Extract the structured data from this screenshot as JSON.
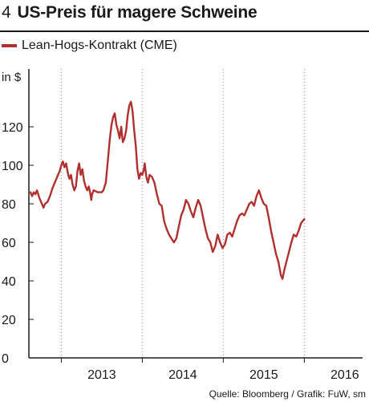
{
  "header": {
    "figure_number": "4",
    "title": "US-Preis für magere Schweine"
  },
  "source": "Quelle: Bloomberg / Grafik: FuW, sm",
  "colors": {
    "series": "#b0302e",
    "axis": "#1a1a1a",
    "grid": "#888888"
  },
  "chart_data": {
    "type": "line",
    "title": "US-Preis für magere Schweine",
    "ylabel": "in $",
    "xlabel": "",
    "ylim": [
      0,
      140
    ],
    "yticks": [
      0,
      20,
      40,
      60,
      80,
      100,
      120
    ],
    "xlim": [
      2012.6,
      2016.66
    ],
    "x_tick_labels": [
      {
        "label": "2013",
        "x": 2013.5
      },
      {
        "label": "2014",
        "x": 2014.5
      },
      {
        "label": "2015",
        "x": 2015.5
      },
      {
        "label": "2016",
        "x": 2016.5
      }
    ],
    "year_boundaries": [
      2013.0,
      2014.0,
      2015.0,
      2016.0
    ],
    "grid": "vertical dotted at year boundaries",
    "legend_position": "top-left",
    "series": [
      {
        "name": "Lean-Hogs-Kontrakt (CME)",
        "color": "#b0302e",
        "points": [
          [
            2012.62,
            86
          ],
          [
            2012.64,
            84
          ],
          [
            2012.66,
            86
          ],
          [
            2012.68,
            85
          ],
          [
            2012.7,
            87
          ],
          [
            2012.73,
            83
          ],
          [
            2012.76,
            80
          ],
          [
            2012.78,
            78
          ],
          [
            2012.8,
            80
          ],
          [
            2012.83,
            81
          ],
          [
            2012.86,
            84
          ],
          [
            2012.89,
            88
          ],
          [
            2012.92,
            91
          ],
          [
            2012.95,
            94
          ],
          [
            2012.98,
            97
          ],
          [
            2013.0,
            100
          ],
          [
            2013.02,
            102
          ],
          [
            2013.04,
            99
          ],
          [
            2013.06,
            101
          ],
          [
            2013.08,
            96
          ],
          [
            2013.1,
            93
          ],
          [
            2013.12,
            95
          ],
          [
            2013.14,
            90
          ],
          [
            2013.16,
            87
          ],
          [
            2013.18,
            89
          ],
          [
            2013.2,
            97
          ],
          [
            2013.22,
            101
          ],
          [
            2013.24,
            95
          ],
          [
            2013.26,
            98
          ],
          [
            2013.28,
            92
          ],
          [
            2013.3,
            89
          ],
          [
            2013.32,
            87
          ],
          [
            2013.34,
            89
          ],
          [
            2013.36,
            85
          ],
          [
            2013.37,
            82
          ],
          [
            2013.38,
            85
          ],
          [
            2013.4,
            87
          ],
          [
            2013.45,
            86
          ],
          [
            2013.5,
            86
          ],
          [
            2013.52,
            87
          ],
          [
            2013.55,
            91
          ],
          [
            2013.58,
            105
          ],
          [
            2013.6,
            114
          ],
          [
            2013.62,
            121
          ],
          [
            2013.64,
            125
          ],
          [
            2013.66,
            127
          ],
          [
            2013.68,
            121
          ],
          [
            2013.7,
            118
          ],
          [
            2013.72,
            114
          ],
          [
            2013.74,
            120
          ],
          [
            2013.76,
            112
          ],
          [
            2013.78,
            114
          ],
          [
            2013.8,
            118
          ],
          [
            2013.82,
            126
          ],
          [
            2013.84,
            131
          ],
          [
            2013.86,
            133
          ],
          [
            2013.88,
            128
          ],
          [
            2013.9,
            118
          ],
          [
            2013.92,
            110
          ],
          [
            2013.94,
            98
          ],
          [
            2013.96,
            93
          ],
          [
            2013.98,
            96
          ],
          [
            2014.0,
            95
          ],
          [
            2014.02,
            98
          ],
          [
            2014.03,
            101
          ],
          [
            2014.05,
            94
          ],
          [
            2014.07,
            91
          ],
          [
            2014.09,
            95
          ],
          [
            2014.12,
            94
          ],
          [
            2014.15,
            91
          ],
          [
            2014.18,
            85
          ],
          [
            2014.21,
            80
          ],
          [
            2014.24,
            79
          ],
          [
            2014.27,
            71
          ],
          [
            2014.3,
            67
          ],
          [
            2014.33,
            64
          ],
          [
            2014.36,
            62
          ],
          [
            2014.39,
            60
          ],
          [
            2014.42,
            62
          ],
          [
            2014.45,
            68
          ],
          [
            2014.48,
            74
          ],
          [
            2014.51,
            77
          ],
          [
            2014.54,
            82
          ],
          [
            2014.57,
            80
          ],
          [
            2014.6,
            76
          ],
          [
            2014.63,
            73
          ],
          [
            2014.66,
            78
          ],
          [
            2014.69,
            82
          ],
          [
            2014.72,
            79
          ],
          [
            2014.75,
            73
          ],
          [
            2014.78,
            67
          ],
          [
            2014.81,
            62
          ],
          [
            2014.84,
            60
          ],
          [
            2014.87,
            55
          ],
          [
            2014.9,
            58
          ],
          [
            2014.93,
            64
          ],
          [
            2014.96,
            60
          ],
          [
            2014.99,
            57
          ],
          [
            2015.02,
            59
          ],
          [
            2015.05,
            64
          ],
          [
            2015.08,
            65
          ],
          [
            2015.11,
            63
          ],
          [
            2015.14,
            67
          ],
          [
            2015.17,
            71
          ],
          [
            2015.2,
            74
          ],
          [
            2015.23,
            75
          ],
          [
            2015.26,
            74
          ],
          [
            2015.29,
            77
          ],
          [
            2015.32,
            80
          ],
          [
            2015.35,
            81
          ],
          [
            2015.38,
            79
          ],
          [
            2015.41,
            84
          ],
          [
            2015.44,
            87
          ],
          [
            2015.47,
            83
          ],
          [
            2015.5,
            80
          ],
          [
            2015.53,
            79
          ],
          [
            2015.56,
            73
          ],
          [
            2015.59,
            66
          ],
          [
            2015.62,
            60
          ],
          [
            2015.65,
            54
          ],
          [
            2015.68,
            50
          ],
          [
            2015.71,
            43
          ],
          [
            2015.73,
            41
          ],
          [
            2015.75,
            45
          ],
          [
            2015.78,
            50
          ],
          [
            2015.81,
            55
          ],
          [
            2015.84,
            60
          ],
          [
            2015.87,
            64
          ],
          [
            2015.9,
            63
          ],
          [
            2015.93,
            66
          ],
          [
            2015.96,
            70
          ],
          [
            2016.0,
            72
          ]
        ]
      }
    ]
  }
}
